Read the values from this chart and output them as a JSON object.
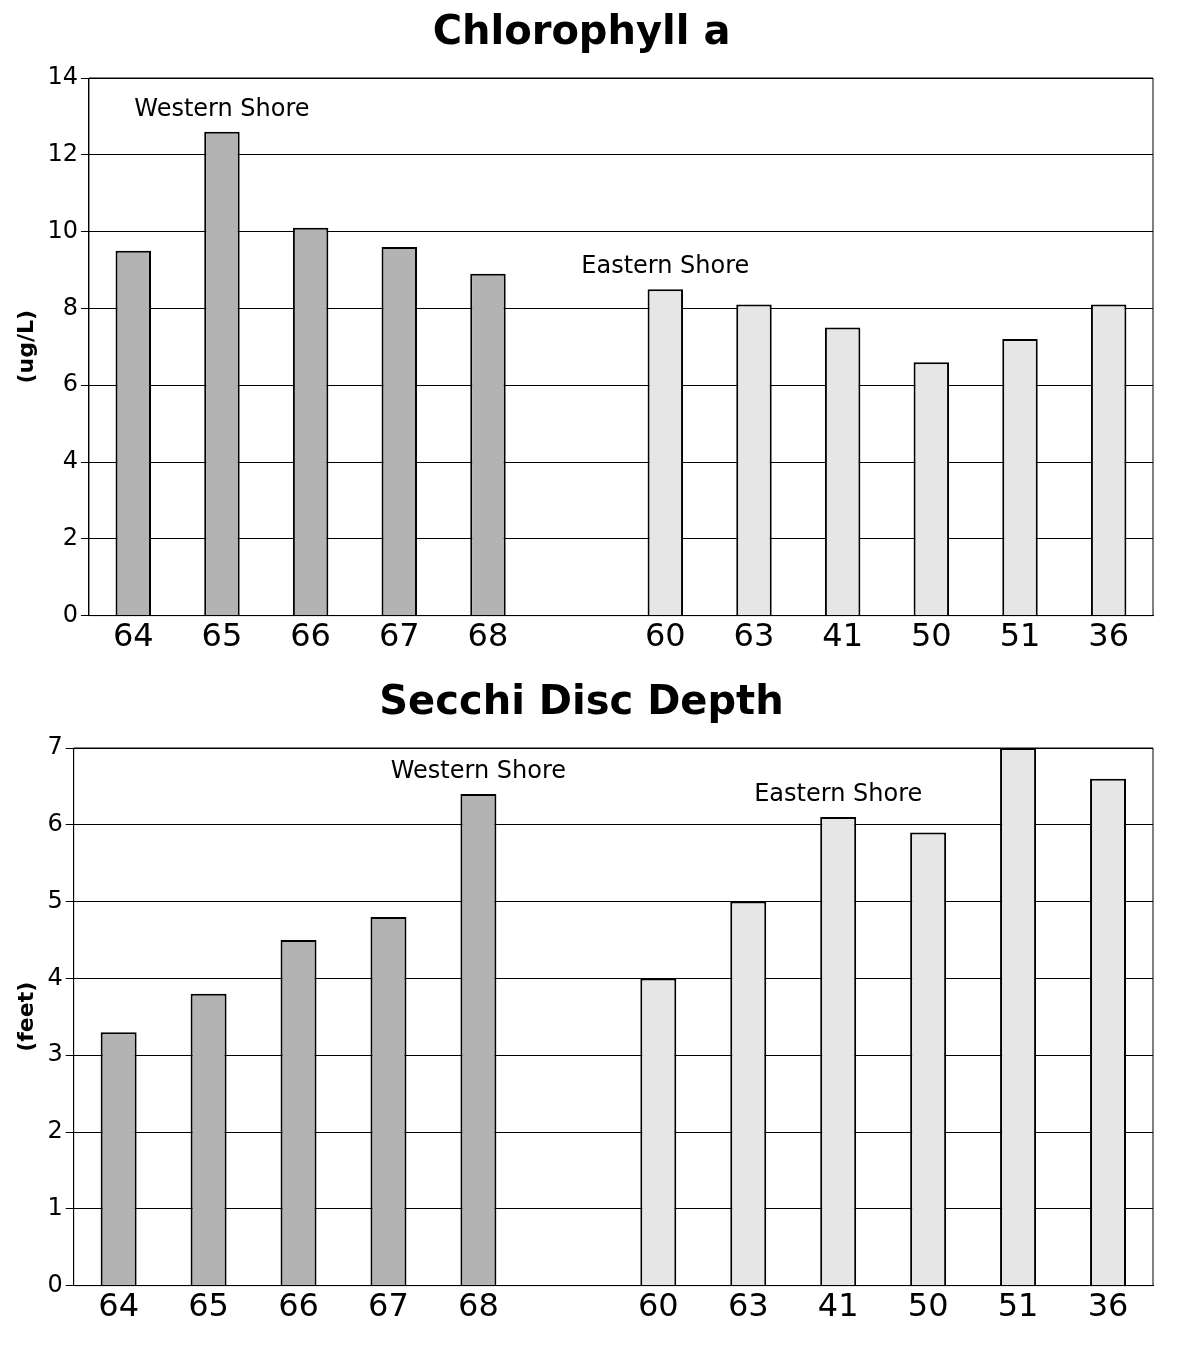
{
  "chart_data": [
    {
      "type": "bar",
      "title": "Chlorophyll a",
      "ylabel": "(ug/L)",
      "categories": [
        "64",
        "65",
        "66",
        "67",
        "68",
        null,
        "60",
        "63",
        "41",
        "50",
        "51",
        "36"
      ],
      "series": [
        {
          "name": "Western Shore",
          "color": "#b3b3b3",
          "values": [
            9.5,
            12.6,
            10.1,
            9.6,
            8.9,
            null,
            null,
            null,
            null,
            null,
            null,
            null
          ]
        },
        {
          "name": "Eastern Shore",
          "color": "#e6e6e6",
          "values": [
            null,
            null,
            null,
            null,
            null,
            null,
            8.5,
            8.1,
            7.5,
            6.6,
            7.2,
            8.1
          ]
        }
      ],
      "ylim": [
        0,
        14
      ],
      "yticks": [
        0,
        2,
        4,
        6,
        8,
        10,
        12,
        14
      ],
      "grid": "y",
      "legend": false
    },
    {
      "type": "bar",
      "title": "Secchi Disc Depth",
      "ylabel": "(feet)",
      "categories": [
        "64",
        "65",
        "66",
        "67",
        "68",
        null,
        "60",
        "63",
        "41",
        "50",
        "51",
        "36"
      ],
      "series": [
        {
          "name": "Western Shore",
          "color": "#b3b3b3",
          "values": [
            3.3,
            3.8,
            4.5,
            4.8,
            6.4,
            null,
            null,
            null,
            null,
            null,
            null,
            null
          ]
        },
        {
          "name": "Eastern Shore",
          "color": "#e6e6e6",
          "values": [
            null,
            null,
            null,
            null,
            null,
            null,
            4.0,
            5.0,
            6.1,
            5.9,
            7.0,
            6.6
          ]
        }
      ],
      "ylim": [
        0,
        7
      ],
      "yticks": [
        0,
        1,
        2,
        3,
        4,
        5,
        6,
        7
      ],
      "grid": "y",
      "legend": false
    }
  ]
}
